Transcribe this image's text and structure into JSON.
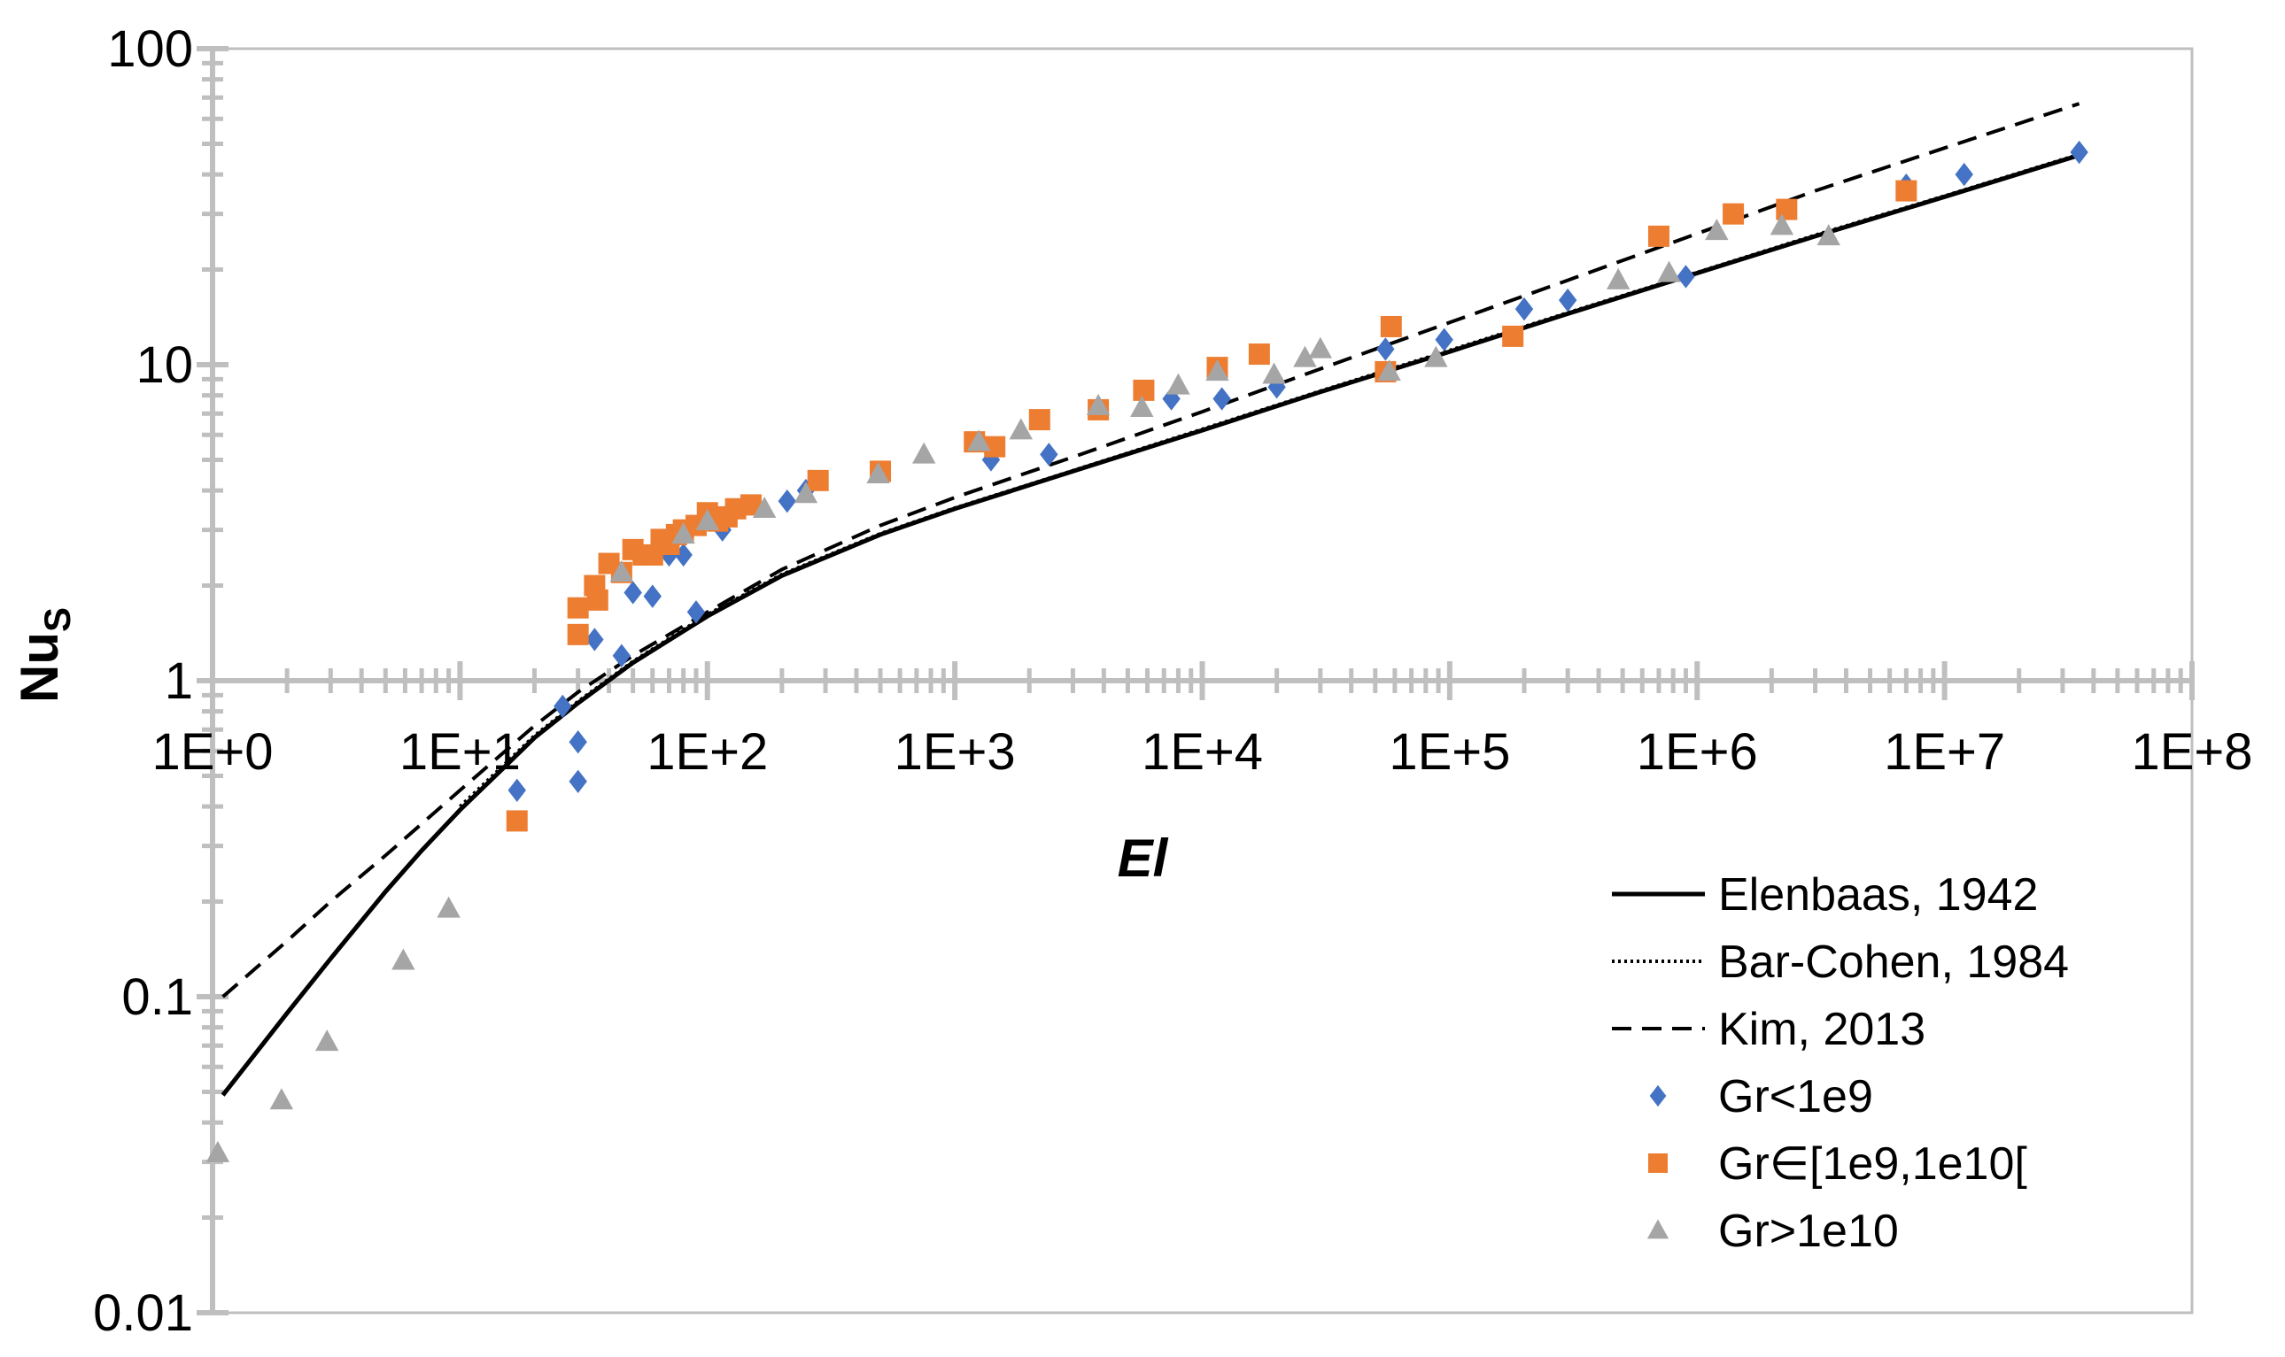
{
  "chart_data": {
    "type": "scatter",
    "title": "",
    "xlabel": "El",
    "ylabel_main": "Nu",
    "ylabel_sub": "S",
    "xscale": "log",
    "yscale": "log",
    "xlim": [
      1,
      100000000
    ],
    "ylim": [
      0.01,
      100
    ],
    "x_tick_values": [
      1,
      10,
      100,
      1000,
      10000,
      100000,
      1000000,
      10000000,
      100000000
    ],
    "x_tick_labels": [
      "1E+0",
      "1E+1",
      "1E+2",
      "1E+3",
      "1E+4",
      "1E+5",
      "1E+6",
      "1E+7",
      "1E+8"
    ],
    "y_tick_values": [
      0.01,
      0.1,
      1,
      10,
      100
    ],
    "y_tick_labels": [
      "0.01",
      "0.1",
      "1",
      "10",
      "100"
    ],
    "x_axis_crosses_at_y": 1,
    "legend_position": "bottom-right",
    "colors": {
      "axis": "#bfbfbf",
      "line": "#000000",
      "blue": "#4472c4",
      "orange": "#ed7d31",
      "gray": "#a5a5a5"
    },
    "lines": [
      {
        "name": "Elenbaas, 1942",
        "style": "solid",
        "x": [
          1.1,
          2,
          3,
          5,
          7,
          10,
          15,
          20,
          30,
          50,
          100,
          200,
          500,
          1000,
          3000,
          10000,
          30000,
          100000,
          300000,
          1000000,
          3000000,
          10000000,
          35000000
        ],
        "y": [
          0.0488,
          0.0887,
          0.132,
          0.215,
          0.29,
          0.39,
          0.53,
          0.66,
          0.85,
          1.14,
          1.6,
          2.15,
          2.9,
          3.5,
          4.6,
          6.2,
          8.2,
          11.0,
          14.5,
          19.5,
          25.5,
          34.0,
          46.0
        ]
      },
      {
        "name": "Bar-Cohen, 1984",
        "style": "dotted",
        "x": [
          10,
          15,
          20,
          30,
          50,
          100,
          200,
          500,
          1000,
          3000,
          10000,
          30000,
          100000,
          300000,
          1000000,
          3000000,
          10000000,
          35000000
        ],
        "y": [
          0.4,
          0.54,
          0.67,
          0.86,
          1.15,
          1.62,
          2.17,
          2.92,
          3.52,
          4.62,
          6.25,
          8.25,
          11.1,
          14.6,
          19.6,
          25.7,
          34.2,
          46.3
        ]
      },
      {
        "name": "Kim, 2013",
        "style": "dashed",
        "x": [
          1.1,
          2,
          3,
          5,
          10,
          20,
          30,
          50,
          100,
          200,
          500,
          1000,
          3000,
          10000,
          30000,
          100000,
          300000,
          1000000,
          3000000,
          10000000,
          35000000
        ],
        "y": [
          0.1,
          0.15,
          0.2,
          0.28,
          0.45,
          0.72,
          0.92,
          1.2,
          1.65,
          2.25,
          3.1,
          3.8,
          5.1,
          7.1,
          9.7,
          13.6,
          18.5,
          26.0,
          35.5,
          48.5,
          67.0
        ]
      }
    ],
    "series": [
      {
        "name": "Gr<1e9",
        "marker": "diamond",
        "x": [
          17,
          26,
          30,
          30,
          35,
          45,
          50,
          60,
          70,
          80,
          90,
          115,
          210,
          250,
          1400,
          2400,
          7500,
          12000,
          20000,
          55000,
          95000,
          200000,
          300000,
          900000,
          7000000,
          12000000,
          35000000
        ],
        "y": [
          0.45,
          0.83,
          0.64,
          0.48,
          1.35,
          1.2,
          1.9,
          1.85,
          2.5,
          2.5,
          1.65,
          3.0,
          3.7,
          4.0,
          5.0,
          5.2,
          7.8,
          7.8,
          8.5,
          11.2,
          12.0,
          15.0,
          16.0,
          19.0,
          37.0,
          40.0,
          47.0
        ]
      },
      {
        "name": "Gr∈[1e9,1e10[",
        "marker": "square",
        "x": [
          17,
          30,
          30,
          35,
          36,
          40,
          45,
          50,
          55,
          60,
          65,
          70,
          75,
          80,
          90,
          100,
          110,
          120,
          130,
          150,
          280,
          500,
          1200,
          1450,
          2200,
          3800,
          5800,
          11500,
          17000,
          55000,
          58000,
          180000,
          700000,
          1400000,
          2300000,
          7000000
        ],
        "y": [
          0.36,
          1.7,
          1.4,
          2.0,
          1.8,
          2.35,
          2.2,
          2.6,
          2.5,
          2.5,
          2.8,
          2.7,
          2.9,
          3.0,
          3.1,
          3.4,
          3.2,
          3.3,
          3.5,
          3.6,
          4.3,
          4.6,
          5.7,
          5.5,
          6.7,
          7.2,
          8.3,
          9.8,
          10.8,
          9.5,
          13.2,
          12.3,
          25.5,
          30.0,
          31.0,
          35.5
        ]
      },
      {
        "name": "Gr>1e10",
        "marker": "triangle",
        "x": [
          1.05,
          1.9,
          2.9,
          5.9,
          9.0,
          45,
          80,
          100,
          170,
          250,
          490,
          750,
          1250,
          1850,
          3800,
          5700,
          8000,
          11500,
          19500,
          26000,
          30000,
          57000,
          88000,
          480000,
          770000,
          1200000,
          2200000,
          3400000
        ],
        "y": [
          0.032,
          0.047,
          0.072,
          0.13,
          0.19,
          2.2,
          2.9,
          3.2,
          3.5,
          3.9,
          4.5,
          5.2,
          5.7,
          6.2,
          7.4,
          7.3,
          8.6,
          9.5,
          9.3,
          10.5,
          11.2,
          9.5,
          10.5,
          18.5,
          19.5,
          26.5,
          27.5,
          25.5
        ]
      }
    ]
  }
}
